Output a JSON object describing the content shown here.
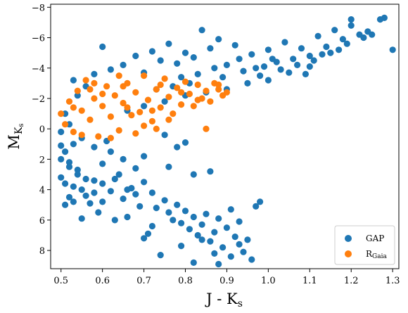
{
  "chart_data": {
    "type": "scatter",
    "title": "",
    "xlabel": "J - K",
    "xlabel_sub": "s",
    "ylabel": "M",
    "ylabel_sub": "K",
    "ylabel_subsub": "s",
    "xlim": [
      0.475,
      1.315
    ],
    "ylim": [
      9.2,
      -8.2
    ],
    "y_inverted": true,
    "x_ticks": [
      0.5,
      0.6,
      0.7,
      0.8,
      0.9,
      1.0,
      1.1,
      1.2,
      1.3
    ],
    "x_tick_labels": [
      "0.5",
      "0.6",
      "0.7",
      "0.8",
      "0.9",
      "1.0",
      "1.1",
      "1.2",
      "1.3"
    ],
    "y_ticks": [
      -8,
      -6,
      -4,
      -2,
      0,
      2,
      4,
      6,
      8
    ],
    "y_tick_labels": [
      "−8",
      "−6",
      "−4",
      "−2",
      "0",
      "2",
      "4",
      "6",
      "8"
    ],
    "grid": false,
    "legend_position": "bottom-right",
    "series": [
      {
        "name": "GAP",
        "color": "#1f77b4",
        "points": [
          [
            0.5,
            0.2
          ],
          [
            0.51,
            1.5
          ],
          [
            0.52,
            2.5
          ],
          [
            0.5,
            3.2
          ],
          [
            0.53,
            3.8
          ],
          [
            0.52,
            4.5
          ],
          [
            0.51,
            5.0
          ],
          [
            0.55,
            4.0
          ],
          [
            0.56,
            3.3
          ],
          [
            0.54,
            2.7
          ],
          [
            0.58,
            4.2
          ],
          [
            0.6,
            3.6
          ],
          [
            0.62,
            4.1
          ],
          [
            0.64,
            3.0
          ],
          [
            0.65,
            4.6
          ],
          [
            0.67,
            3.9
          ],
          [
            0.68,
            4.3
          ],
          [
            0.7,
            3.5
          ],
          [
            0.72,
            4.2
          ],
          [
            0.73,
            5.2
          ],
          [
            0.75,
            4.7
          ],
          [
            0.76,
            5.5
          ],
          [
            0.78,
            5.0
          ],
          [
            0.79,
            6.2
          ],
          [
            0.8,
            5.4
          ],
          [
            0.81,
            6.6
          ],
          [
            0.82,
            5.8
          ],
          [
            0.83,
            7.0
          ],
          [
            0.84,
            6.3
          ],
          [
            0.85,
            5.6
          ],
          [
            0.86,
            7.4
          ],
          [
            0.87,
            6.8
          ],
          [
            0.88,
            5.9
          ],
          [
            0.89,
            7.8
          ],
          [
            0.9,
            6.5
          ],
          [
            0.91,
            5.3
          ],
          [
            0.92,
            7.1
          ],
          [
            0.93,
            6.1
          ],
          [
            0.94,
            8.1
          ],
          [
            0.95,
            7.3
          ],
          [
            0.96,
            8.6
          ],
          [
            0.97,
            5.1
          ],
          [
            0.88,
            8.9
          ],
          [
            0.74,
            8.3
          ],
          [
            0.7,
            7.2
          ],
          [
            0.72,
            6.4
          ],
          [
            0.66,
            5.8
          ],
          [
            0.63,
            6.0
          ],
          [
            0.57,
            4.9
          ],
          [
            0.6,
            2.3
          ],
          [
            0.53,
            1.0
          ],
          [
            0.55,
            0.6
          ],
          [
            0.52,
            -0.3
          ],
          [
            0.51,
            -1.0
          ],
          [
            0.54,
            -2.2
          ],
          [
            0.56,
            -2.8
          ],
          [
            0.53,
            -3.2
          ],
          [
            0.58,
            -3.6
          ],
          [
            0.6,
            -5.4
          ],
          [
            0.62,
            -3.9
          ],
          [
            0.65,
            -4.2
          ],
          [
            0.68,
            -4.8
          ],
          [
            0.7,
            -3.7
          ],
          [
            0.72,
            -5.1
          ],
          [
            0.74,
            -4.5
          ],
          [
            0.76,
            -5.6
          ],
          [
            0.78,
            -4.3
          ],
          [
            0.8,
            -5.0
          ],
          [
            0.82,
            -4.7
          ],
          [
            0.84,
            -6.5
          ],
          [
            0.86,
            -5.3
          ],
          [
            0.88,
            -5.9
          ],
          [
            0.9,
            -4.2
          ],
          [
            0.92,
            -5.5
          ],
          [
            0.94,
            -3.8
          ],
          [
            0.96,
            -4.9
          ],
          [
            0.98,
            -3.5
          ],
          [
            1.0,
            -5.2
          ],
          [
            1.02,
            -4.4
          ],
          [
            1.04,
            -5.7
          ],
          [
            1.06,
            -4.6
          ],
          [
            1.08,
            -5.3
          ],
          [
            1.1,
            -4.8
          ],
          [
            1.12,
            -6.1
          ],
          [
            1.14,
            -5.4
          ],
          [
            1.16,
            -6.5
          ],
          [
            1.18,
            -5.9
          ],
          [
            1.2,
            -6.8
          ],
          [
            1.22,
            -6.2
          ],
          [
            1.24,
            -6.4
          ],
          [
            1.27,
            -7.2
          ],
          [
            1.28,
            -7.3
          ],
          [
            1.3,
            -5.2
          ],
          [
            1.2,
            -7.2
          ],
          [
            1.15,
            -5.0
          ],
          [
            1.1,
            -4.1
          ],
          [
            1.05,
            -3.7
          ],
          [
            1.0,
            -3.2
          ],
          [
            0.95,
            -3.0
          ],
          [
            0.9,
            -2.6
          ],
          [
            0.85,
            -2.4
          ],
          [
            0.8,
            -2.2
          ],
          [
            0.75,
            -1.8
          ],
          [
            0.7,
            -1.5
          ],
          [
            0.66,
            -1.2
          ],
          [
            0.8,
            0.9
          ],
          [
            0.75,
            0.4
          ],
          [
            0.78,
            1.2
          ],
          [
            0.7,
            1.8
          ],
          [
            0.65,
            2.0
          ],
          [
            0.62,
            1.5
          ],
          [
            0.58,
            1.2
          ],
          [
            0.61,
            0.8
          ],
          [
            0.86,
            2.8
          ],
          [
            0.82,
            3.0
          ],
          [
            0.76,
            2.5
          ],
          [
            0.68,
            2.6
          ],
          [
            0.98,
            4.8
          ],
          [
            0.91,
            8.4
          ],
          [
            0.82,
            8.8
          ],
          [
            0.71,
            6.9
          ],
          [
            0.79,
            7.7
          ],
          [
            0.87,
            8.2
          ],
          [
            0.93,
            7.6
          ],
          [
            0.84,
            7.3
          ],
          [
            0.77,
            6.0
          ],
          [
            0.69,
            5.1
          ],
          [
            0.59,
            5.5
          ],
          [
            0.55,
            5.9
          ],
          [
            0.53,
            4.8
          ],
          [
            0.5,
            2.0
          ],
          [
            0.5,
            1.1
          ],
          [
            0.51,
            3.6
          ],
          [
            0.52,
            2.2
          ],
          [
            0.54,
            3.0
          ],
          [
            0.56,
            4.4
          ],
          [
            0.58,
            3.4
          ],
          [
            0.6,
            4.8
          ],
          [
            0.63,
            3.3
          ],
          [
            0.66,
            4.0
          ],
          [
            0.99,
            -4.1
          ],
          [
            1.03,
            -3.9
          ],
          [
            1.07,
            -4.2
          ],
          [
            1.11,
            -4.5
          ],
          [
            1.13,
            -4.9
          ],
          [
            1.17,
            -5.2
          ],
          [
            1.19,
            -5.6
          ],
          [
            1.23,
            -6.0
          ],
          [
            1.25,
            -6.2
          ],
          [
            1.09,
            -3.6
          ],
          [
            1.01,
            -4.6
          ],
          [
            0.97,
            -4.0
          ],
          [
            0.93,
            -4.6
          ],
          [
            0.89,
            -3.4
          ],
          [
            0.87,
            -4.0
          ],
          [
            0.83,
            -3.6
          ],
          [
            0.81,
            -3.0
          ],
          [
            0.79,
            -3.4
          ],
          [
            0.77,
            -2.8
          ],
          [
            0.73,
            -2.6
          ]
        ]
      },
      {
        "name": "R",
        "name_sub": "Gaia",
        "color": "#ff7f0e",
        "points": [
          [
            0.5,
            -1.0
          ],
          [
            0.51,
            -0.3
          ],
          [
            0.52,
            -1.8
          ],
          [
            0.53,
            0.2
          ],
          [
            0.54,
            -2.5
          ],
          [
            0.55,
            -1.2
          ],
          [
            0.56,
            -3.2
          ],
          [
            0.57,
            -0.6
          ],
          [
            0.58,
            -2.0
          ],
          [
            0.59,
            0.5
          ],
          [
            0.6,
            -1.5
          ],
          [
            0.61,
            -2.8
          ],
          [
            0.62,
            -0.8
          ],
          [
            0.63,
            -2.2
          ],
          [
            0.64,
            0.1
          ],
          [
            0.65,
            -1.7
          ],
          [
            0.66,
            -3.0
          ],
          [
            0.67,
            -0.9
          ],
          [
            0.68,
            -2.4
          ],
          [
            0.69,
            -1.1
          ],
          [
            0.7,
            -3.5
          ],
          [
            0.71,
            -1.9
          ],
          [
            0.72,
            -0.5
          ],
          [
            0.73,
            -2.6
          ],
          [
            0.74,
            -1.4
          ],
          [
            0.75,
            -3.3
          ],
          [
            0.76,
            -2.1
          ],
          [
            0.77,
            -1.0
          ],
          [
            0.78,
            -2.7
          ],
          [
            0.79,
            -1.6
          ],
          [
            0.8,
            -3.1
          ],
          [
            0.81,
            -2.3
          ],
          [
            0.82,
            -1.5
          ],
          [
            0.83,
            -2.9
          ],
          [
            0.84,
            -2.0
          ],
          [
            0.85,
            -2.5
          ],
          [
            0.86,
            -1.8
          ],
          [
            0.87,
            -3.0
          ],
          [
            0.88,
            -2.6
          ],
          [
            0.89,
            -2.2
          ],
          [
            0.9,
            -2.4
          ],
          [
            0.85,
            0.0
          ],
          [
            0.73,
            0.0
          ],
          [
            0.68,
            0.3
          ],
          [
            0.64,
            -3.5
          ],
          [
            0.58,
            -3.0
          ],
          [
            0.55,
            0.4
          ],
          [
            0.62,
            0.6
          ],
          [
            0.76,
            -0.6
          ],
          [
            0.7,
            -0.2
          ],
          [
            0.66,
            -1.4
          ],
          [
            0.6,
            -2.3
          ],
          [
            0.53,
            -1.4
          ],
          [
            0.57,
            -2.6
          ],
          [
            0.74,
            -2.9
          ],
          [
            0.79,
            -2.4
          ],
          [
            0.83,
            -1.9
          ],
          [
            0.88,
            -2.9
          ],
          [
            0.72,
            -1.2
          ],
          [
            0.65,
            -2.8
          ]
        ]
      }
    ]
  }
}
